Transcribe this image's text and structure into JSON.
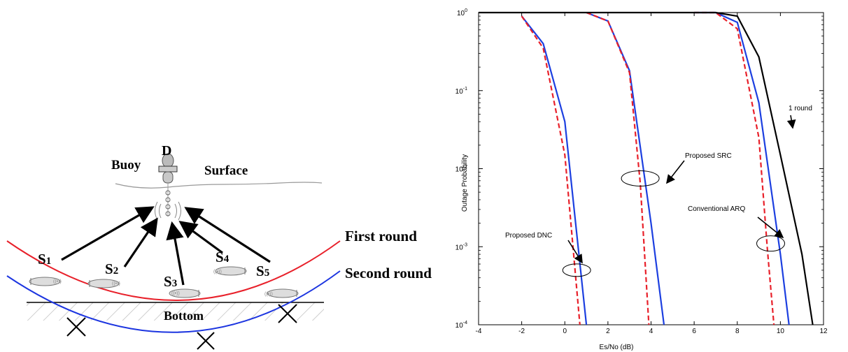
{
  "diagram": {
    "destination_label": "D",
    "buoy_label": "Buoy",
    "surface_label": "Surface",
    "bottom_label": "Bottom",
    "first_round_label": "First round",
    "second_round_label": "Second round",
    "sources": [
      {
        "main": "S",
        "sub": "1"
      },
      {
        "main": "S",
        "sub": "2"
      },
      {
        "main": "S",
        "sub": "3"
      },
      {
        "main": "S",
        "sub": "4"
      },
      {
        "main": "S",
        "sub": "5"
      }
    ],
    "colors": {
      "first_round": "#e8202a",
      "second_round": "#1c35e0",
      "arrow": "#000000"
    }
  },
  "chart_data": {
    "type": "line",
    "xlabel": "Es/No (dB)",
    "ylabel": "Outage Probability",
    "xlim": [
      -4,
      12
    ],
    "ylim": [
      0.0001,
      1
    ],
    "yscale": "log",
    "xticks": [
      "-4",
      "-2",
      "0",
      "2",
      "4",
      "6",
      "8",
      "10",
      "12"
    ],
    "yticks": [
      {
        "base": "10",
        "exp": "0"
      },
      {
        "base": "10",
        "exp": "-1"
      },
      {
        "base": "10",
        "exp": "-2"
      },
      {
        "base": "10",
        "exp": "-3"
      },
      {
        "base": "10",
        "exp": "-4"
      }
    ],
    "series": [
      {
        "group": "proposed_dnc",
        "style": "solid",
        "color": "#1c3fe0",
        "x": [
          -2,
          -1,
          0,
          1
        ],
        "y": [
          0.9,
          0.4,
          0.04,
          0.0001
        ]
      },
      {
        "group": "proposed_dnc",
        "style": "dashed",
        "color": "#e8202a",
        "x": [
          -2,
          -1,
          0,
          0.7
        ],
        "y": [
          0.9,
          0.35,
          0.015,
          0.0001
        ]
      },
      {
        "group": "proposed_src",
        "style": "solid",
        "color": "#1c3fe0",
        "x": [
          1,
          2,
          3,
          4,
          4.6
        ],
        "y": [
          1,
          0.78,
          0.18,
          0.002,
          0.0001
        ]
      },
      {
        "group": "proposed_src",
        "style": "dashed",
        "color": "#e8202a",
        "x": [
          1,
          2,
          3,
          3.5,
          3.9
        ],
        "y": [
          1,
          0.78,
          0.17,
          0.0065,
          0.0001
        ]
      },
      {
        "group": "conventional_arq",
        "style": "solid",
        "color": "#1c3fe0",
        "x": [
          6,
          7,
          8,
          9,
          10,
          10.4
        ],
        "y": [
          1,
          1,
          0.75,
          0.07,
          0.0008,
          0.0001
        ]
      },
      {
        "group": "conventional_arq",
        "style": "dashed",
        "color": "#e8202a",
        "x": [
          6,
          7,
          8,
          9,
          9.4,
          9.7
        ],
        "y": [
          1,
          1,
          0.62,
          0.025,
          0.0009,
          0.0001
        ]
      },
      {
        "group": "one_round",
        "style": "solid",
        "color": "#000000",
        "x": [
          -4,
          7,
          8,
          9,
          10,
          11,
          11.5
        ],
        "y": [
          1,
          1,
          0.9,
          0.27,
          0.015,
          0.0008,
          0.0001
        ]
      }
    ],
    "annotations": [
      {
        "text": "1 round",
        "x": 9.9,
        "y": 0.16,
        "arrow_to": [
          9.9,
          0.04
        ]
      },
      {
        "text": "Proposed SRC",
        "x": 5.0,
        "y": 0.0115,
        "arrow_to": [
          3.5,
          0.0085
        ]
      },
      {
        "text": "Conventional ARQ",
        "x": 7.3,
        "y": 0.0026,
        "arrow_to": [
          9.5,
          0.0013
        ]
      },
      {
        "text": "Proposed DNC",
        "x": -3.6,
        "y": 0.0014,
        "arrow_to": [
          0.3,
          0.0005
        ]
      }
    ],
    "grid": false
  }
}
